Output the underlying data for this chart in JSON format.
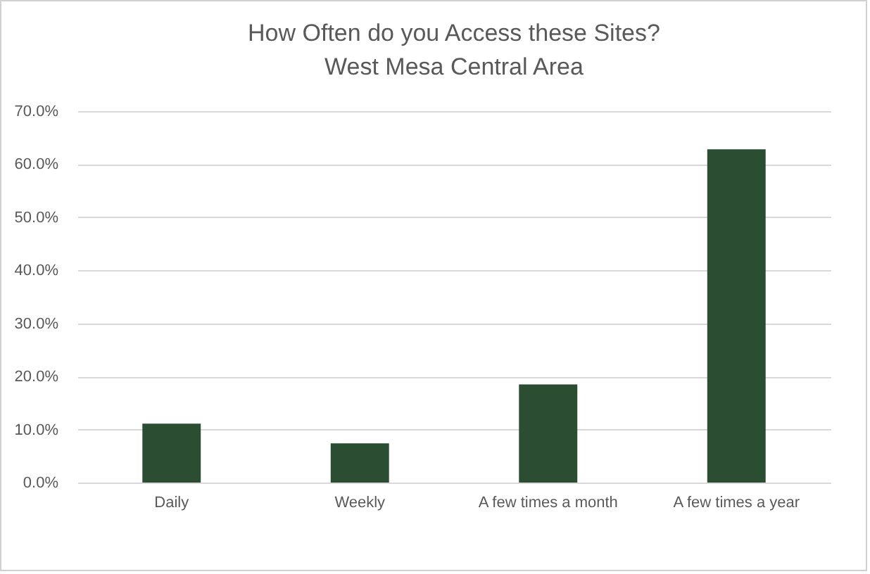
{
  "chart_data": {
    "type": "bar",
    "title": [
      "How Often do you Access these Sites?",
      "West Mesa Central Area"
    ],
    "categories": [
      "Daily",
      "Weekly",
      "A few times a month",
      "A few times a year"
    ],
    "values": [
      11.1,
      7.4,
      18.5,
      62.8
    ],
    "color": "#2b4d32",
    "ylim": [
      0,
      70
    ],
    "yticks": [
      {
        "value": 0,
        "label": "0.0%"
      },
      {
        "value": 10,
        "label": "10.0%"
      },
      {
        "value": 20,
        "label": "20.0%"
      },
      {
        "value": 30,
        "label": "30.0%"
      },
      {
        "value": 40,
        "label": "40.0%"
      },
      {
        "value": 50,
        "label": "50.0%"
      },
      {
        "value": 60,
        "label": "60.0%"
      },
      {
        "value": 70,
        "label": "70.0%"
      }
    ],
    "grid": "y"
  }
}
